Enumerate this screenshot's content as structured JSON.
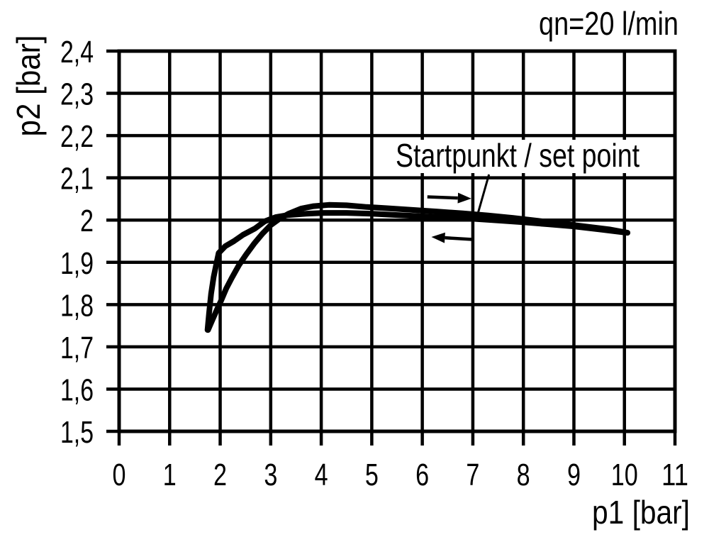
{
  "chart_data": {
    "type": "line",
    "title": "qn=20 l/min",
    "xlabel": "p1 [bar]",
    "ylabel": "p2 [bar]",
    "xlim": [
      0,
      11
    ],
    "ylim": [
      1.5,
      2.4
    ],
    "grid": true,
    "legend": "none",
    "line_color": "#000000",
    "background_color": "#ffffff",
    "xticks": {
      "values": [
        0,
        1,
        2,
        3,
        4,
        5,
        6,
        7,
        8,
        9,
        10,
        11
      ],
      "labels": [
        "0",
        "1",
        "2",
        "3",
        "4",
        "5",
        "6",
        "7",
        "8",
        "9",
        "10",
        "11"
      ]
    },
    "yticks": {
      "values": [
        1.5,
        1.6,
        1.7,
        1.8,
        1.9,
        2.0,
        2.1,
        2.2,
        2.3,
        2.4
      ],
      "labels": [
        "1,5",
        "1,6",
        "1,7",
        "1,8",
        "1,9",
        "2",
        "2,1",
        "2,2",
        "2,3",
        "2,4"
      ]
    },
    "series": [
      {
        "name": "hysteresis-upper-branch",
        "points": [
          [
            1.76,
            1.74
          ],
          [
            1.85,
            1.765
          ],
          [
            1.95,
            1.792
          ],
          [
            2.02,
            1.81
          ],
          [
            2.12,
            1.838
          ],
          [
            2.23,
            1.863
          ],
          [
            2.37,
            1.893
          ],
          [
            2.51,
            1.918
          ],
          [
            2.67,
            1.944
          ],
          [
            2.83,
            1.967
          ],
          [
            3.0,
            1.988
          ],
          [
            3.15,
            2.001
          ],
          [
            3.35,
            2.015
          ],
          [
            3.6,
            2.027
          ],
          [
            3.85,
            2.033
          ],
          [
            4.15,
            2.036
          ],
          [
            4.5,
            2.035
          ],
          [
            4.9,
            2.031
          ],
          [
            5.3,
            2.028
          ],
          [
            5.8,
            2.024
          ],
          [
            6.3,
            2.02
          ],
          [
            6.8,
            2.016
          ],
          [
            7.3,
            2.011
          ],
          [
            7.8,
            2.005
          ],
          [
            8.3,
            1.998
          ],
          [
            8.8,
            1.991
          ],
          [
            9.3,
            1.984
          ],
          [
            9.7,
            1.978
          ],
          [
            10.06,
            1.97
          ]
        ]
      },
      {
        "name": "hysteresis-lower-branch",
        "points": [
          [
            1.75,
            1.74
          ],
          [
            1.78,
            1.78
          ],
          [
            1.82,
            1.825
          ],
          [
            1.87,
            1.865
          ],
          [
            1.93,
            1.9
          ],
          [
            1.97,
            1.922
          ],
          [
            2.1,
            1.938
          ],
          [
            2.27,
            1.95
          ],
          [
            2.45,
            1.965
          ],
          [
            2.69,
            1.98
          ],
          [
            2.88,
            1.997
          ],
          [
            3.1,
            2.007
          ],
          [
            3.35,
            2.012
          ],
          [
            3.7,
            2.015
          ],
          [
            4.05,
            2.017
          ],
          [
            4.5,
            2.017
          ],
          [
            5.0,
            2.015
          ],
          [
            5.5,
            2.012
          ],
          [
            6.0,
            2.009
          ],
          [
            6.5,
            2.006
          ],
          [
            7.0,
            2.003
          ],
          [
            7.5,
            1.999
          ],
          [
            8.0,
            1.995
          ],
          [
            8.5,
            1.99
          ],
          [
            9.0,
            1.985
          ],
          [
            9.5,
            1.978
          ],
          [
            10.06,
            1.97
          ]
        ]
      }
    ],
    "annotation": {
      "text": "Startpunkt / set point",
      "anchor": [
        5.47,
        2.125
      ],
      "leader_from": [
        7.32,
        2.108
      ],
      "leader_to": [
        7.07,
        2.003
      ]
    },
    "arrows": [
      {
        "name": "direction-arrow-right",
        "tail": [
          6.1,
          2.055
        ],
        "tip": [
          6.97,
          2.051
        ]
      },
      {
        "name": "direction-arrow-left",
        "tail": [
          7.02,
          1.954
        ],
        "tip": [
          6.18,
          1.96
        ]
      }
    ]
  }
}
